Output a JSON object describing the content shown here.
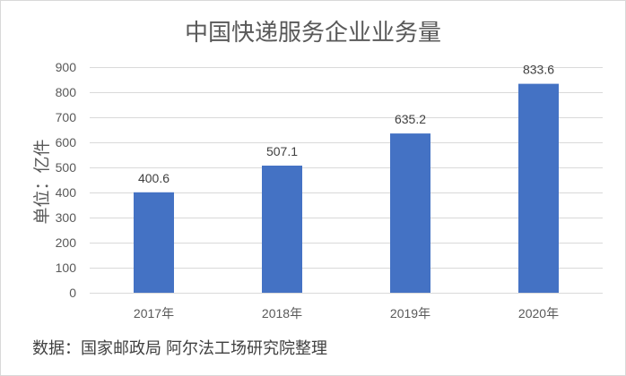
{
  "chart_data": {
    "type": "bar",
    "title": "中国快递服务企业业务量",
    "ylabel": "单位：亿件",
    "categories": [
      "2017年",
      "2018年",
      "2019年",
      "2020年"
    ],
    "values": [
      400.6,
      507.1,
      635.2,
      833.6
    ],
    "ylim": [
      0,
      900
    ],
    "yticks": [
      0,
      100,
      200,
      300,
      400,
      500,
      600,
      700,
      800,
      900
    ],
    "data_labels": true,
    "grid": true
  },
  "source": "数据：国家邮政局 阿尔法工场研究院整理",
  "colors": {
    "bar": "#4472C4",
    "text": "#595959",
    "grid": "#D9D9D9",
    "border": "#D9D9D9"
  }
}
